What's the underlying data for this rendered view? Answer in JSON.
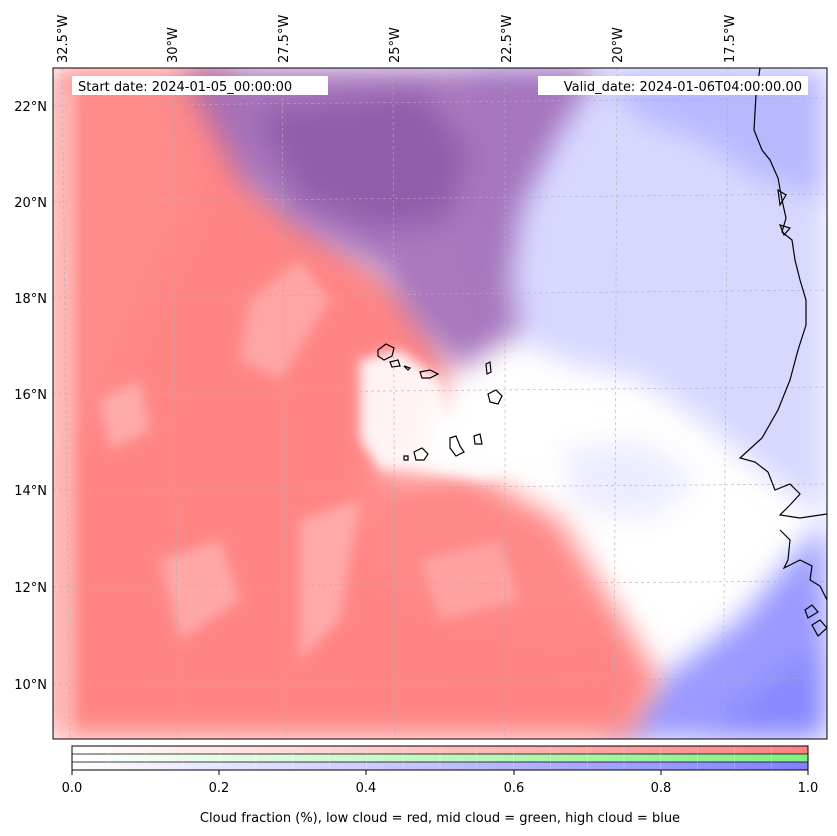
{
  "header": {
    "start_date": "Start date: 2024-01-05_00:00:00",
    "valid_date": "Valid_date: 2024-01-06T04:00:00.00"
  },
  "map": {
    "lon_labels": [
      "32.5°W",
      "30°W",
      "27.5°W",
      "25°W",
      "22.5°W",
      "20°W",
      "17.5°W"
    ],
    "lat_labels": [
      "22°N",
      "20°N",
      "18°N",
      "16°N",
      "14°N",
      "12°N",
      "10°N"
    ],
    "colors": {
      "low_cloud": "#ff8080",
      "mid_cloud": "#80f080",
      "high_cloud": "#8080ff",
      "overlap": "#9a66b8",
      "clear": "#ffffff"
    }
  },
  "colorbar": {
    "ticks": [
      "0.0",
      "0.2",
      "0.4",
      "0.6",
      "0.8",
      "1.0"
    ],
    "label": "Cloud fraction (%), low cloud = red, mid cloud = green, high cloud = blue",
    "bands": [
      {
        "name": "low",
        "start": "#ffffff",
        "end": "#ff8080"
      },
      {
        "name": "mid",
        "start": "#ffffff",
        "end": "#80f080"
      },
      {
        "name": "high",
        "start": "#ffffff",
        "end": "#8080ff"
      }
    ]
  }
}
